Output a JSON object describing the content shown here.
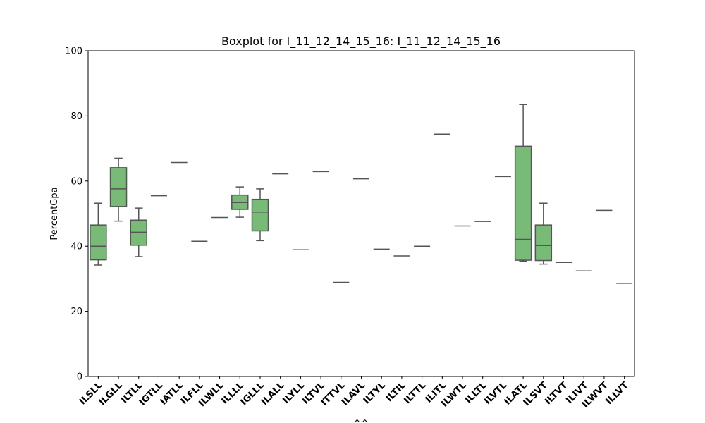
{
  "chart_data": {
    "type": "box",
    "title": "Boxplot for I_11_12_14_15_16: I_11_12_14_15_16",
    "xlabel": "^^",
    "ylabel": "PercentGpa",
    "ylim": [
      0,
      100
    ],
    "yticks": [
      0,
      20,
      40,
      60,
      80,
      100
    ],
    "grid": false,
    "box_color": "#77bb77",
    "line_color": "#555555",
    "categories": [
      "ILSLL",
      "ILGLL",
      "ILTLL",
      "IGTLL",
      "IATLL",
      "ILFLL",
      "ILWLL",
      "ILLLL",
      "IGLLL",
      "ILALL",
      "ILYLL",
      "ILTVL",
      "ITTVL",
      "ILAVL",
      "ILTYL",
      "ILTIL",
      "ILTTL",
      "ILITL",
      "ILWTL",
      "ILLTL",
      "ILVTL",
      "ILATL",
      "ILSVT",
      "ILTVT",
      "ILIVT",
      "ILWVT",
      "ILLVT"
    ],
    "boxes": [
      {
        "min": 34.2,
        "q1": 35.8,
        "median": 40.0,
        "q3": 46.5,
        "max": 53.2
      },
      {
        "min": 47.7,
        "q1": 52.2,
        "median": 57.6,
        "q3": 64.1,
        "max": 67.0
      },
      {
        "min": 36.8,
        "q1": 40.3,
        "median": 44.3,
        "q3": 48.0,
        "max": 51.7
      },
      {
        "min": 55.5,
        "q1": 55.5,
        "median": 55.5,
        "q3": 55.5,
        "max": 55.5
      },
      {
        "min": 65.7,
        "q1": 65.7,
        "median": 65.7,
        "q3": 65.7,
        "max": 65.7
      },
      {
        "min": 41.5,
        "q1": 41.5,
        "median": 41.5,
        "q3": 41.5,
        "max": 41.5
      },
      {
        "min": 48.8,
        "q1": 48.8,
        "median": 48.8,
        "q3": 48.8,
        "max": 48.8
      },
      {
        "min": 48.9,
        "q1": 51.3,
        "median": 53.4,
        "q3": 55.7,
        "max": 58.2
      },
      {
        "min": 41.7,
        "q1": 44.7,
        "median": 50.5,
        "q3": 54.4,
        "max": 57.6
      },
      {
        "min": 62.2,
        "q1": 62.2,
        "median": 62.2,
        "q3": 62.2,
        "max": 62.2
      },
      {
        "min": 38.9,
        "q1": 38.9,
        "median": 38.9,
        "q3": 38.9,
        "max": 38.9
      },
      {
        "min": 62.9,
        "q1": 62.9,
        "median": 62.9,
        "q3": 62.9,
        "max": 62.9
      },
      {
        "min": 28.9,
        "q1": 28.9,
        "median": 28.9,
        "q3": 28.9,
        "max": 28.9
      },
      {
        "min": 60.7,
        "q1": 60.7,
        "median": 60.7,
        "q3": 60.7,
        "max": 60.7
      },
      {
        "min": 39.1,
        "q1": 39.1,
        "median": 39.1,
        "q3": 39.1,
        "max": 39.1
      },
      {
        "min": 37.0,
        "q1": 37.0,
        "median": 37.0,
        "q3": 37.0,
        "max": 37.0
      },
      {
        "min": 40.0,
        "q1": 40.0,
        "median": 40.0,
        "q3": 40.0,
        "max": 40.0
      },
      {
        "min": 74.4,
        "q1": 74.4,
        "median": 74.4,
        "q3": 74.4,
        "max": 74.4
      },
      {
        "min": 46.2,
        "q1": 46.2,
        "median": 46.2,
        "q3": 46.2,
        "max": 46.2
      },
      {
        "min": 47.6,
        "q1": 47.6,
        "median": 47.6,
        "q3": 47.6,
        "max": 47.6
      },
      {
        "min": 61.4,
        "q1": 61.4,
        "median": 61.4,
        "q3": 61.4,
        "max": 61.4
      },
      {
        "min": 35.4,
        "q1": 35.7,
        "median": 42.1,
        "q3": 70.7,
        "max": 83.5
      },
      {
        "min": 34.5,
        "q1": 35.6,
        "median": 40.2,
        "q3": 46.5,
        "max": 53.2
      },
      {
        "min": 35.0,
        "q1": 35.0,
        "median": 35.0,
        "q3": 35.0,
        "max": 35.0
      },
      {
        "min": 32.4,
        "q1": 32.4,
        "median": 32.4,
        "q3": 32.4,
        "max": 32.4
      },
      {
        "min": 51.0,
        "q1": 51.0,
        "median": 51.0,
        "q3": 51.0,
        "max": 51.0
      },
      {
        "min": 28.6,
        "q1": 28.6,
        "median": 28.6,
        "q3": 28.6,
        "max": 28.6
      }
    ]
  }
}
